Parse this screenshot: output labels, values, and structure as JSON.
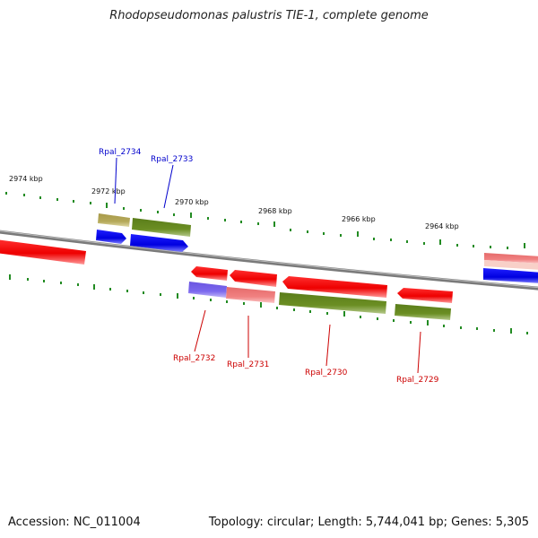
{
  "title": "Rhodopseudomonas palustris TIE-1, complete genome",
  "footer": {
    "accession": "Accession: NC_011004",
    "summary": "Topology: circular; Length: 5,744,041 bp; Genes: 5,305"
  },
  "scale_labels": [
    "2974 kbp",
    "2972 kbp",
    "2970 kbp",
    "2968 kbp",
    "2966 kbp",
    "2964 kbp"
  ],
  "gene_labels": {
    "top": [
      "Rpal_2734",
      "Rpal_2733"
    ],
    "bottom": [
      "Rpal_2732",
      "Rpal_2731",
      "Rpal_2730",
      "Rpal_2729"
    ]
  },
  "colors": {
    "red": "#ff0000",
    "blue": "#0000ee",
    "olive": "#6b8e23",
    "khaki": "#b5a95a",
    "pink": "#f08080",
    "lavender": "#7b68ee",
    "tick": "#228b22",
    "label_blue": "#0000cc",
    "label_red": "#cc0000",
    "backbone": "#808080"
  }
}
